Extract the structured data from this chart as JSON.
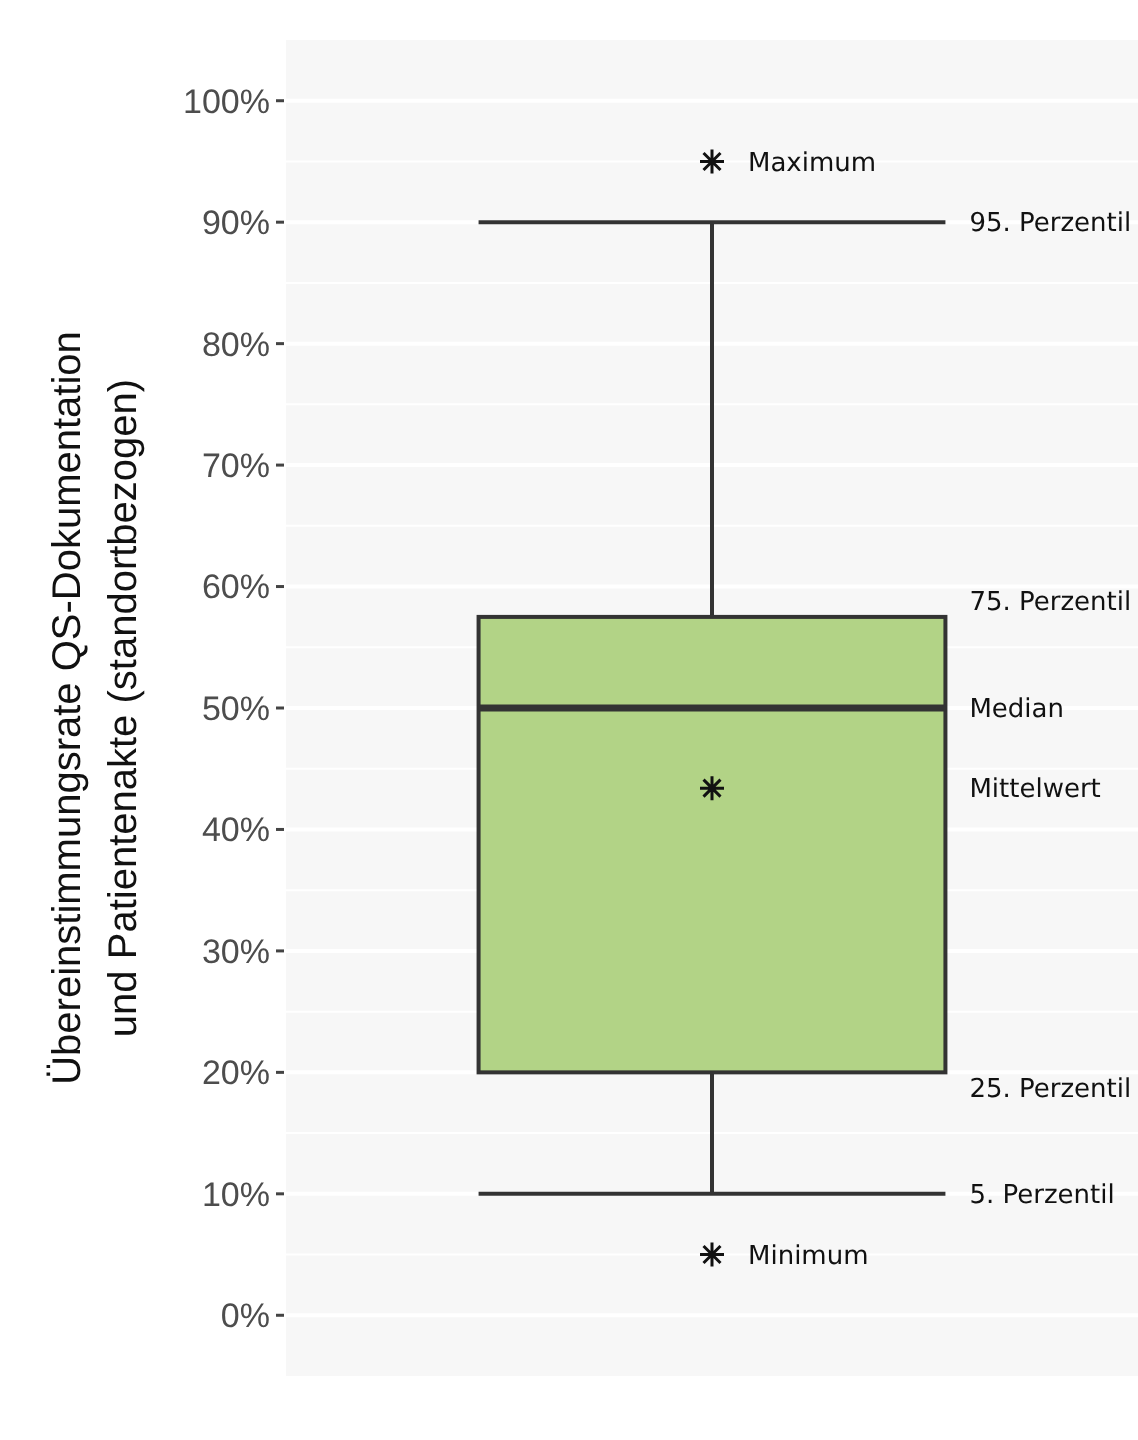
{
  "chart_data": {
    "type": "box",
    "ylabel": "Übereinstimmungsrate QS-Dokumentation\nund Patientenakte (standortbezogen)",
    "categories": [
      null
    ],
    "boxes": [
      {
        "low": 10,
        "q1": 20,
        "median": 50,
        "q3": 57.5,
        "high": 90,
        "mean": 43.4,
        "outliers": [
          95,
          5
        ]
      }
    ],
    "color": "#b2d386",
    "ylim": [
      -5,
      105
    ],
    "yticks": [
      {
        "value": 0,
        "label": "0%"
      },
      {
        "value": 10,
        "label": "10%"
      },
      {
        "value": 20,
        "label": "20%"
      },
      {
        "value": 30,
        "label": "30%"
      },
      {
        "value": 40,
        "label": "40%"
      },
      {
        "value": 50,
        "label": "50%"
      },
      {
        "value": 60,
        "label": "60%"
      },
      {
        "value": 70,
        "label": "70%"
      },
      {
        "value": 80,
        "label": "80%"
      },
      {
        "value": 90,
        "label": "90%"
      },
      {
        "value": 100,
        "label": "100%"
      }
    ],
    "grid": true,
    "marker": "star",
    "annotations": [
      "Maximum",
      "95. Perzentil",
      "75. Perzentil",
      "Median",
      "Mittelwert",
      "25. Perzentil",
      "5. Perzentil",
      "Minimum"
    ]
  }
}
